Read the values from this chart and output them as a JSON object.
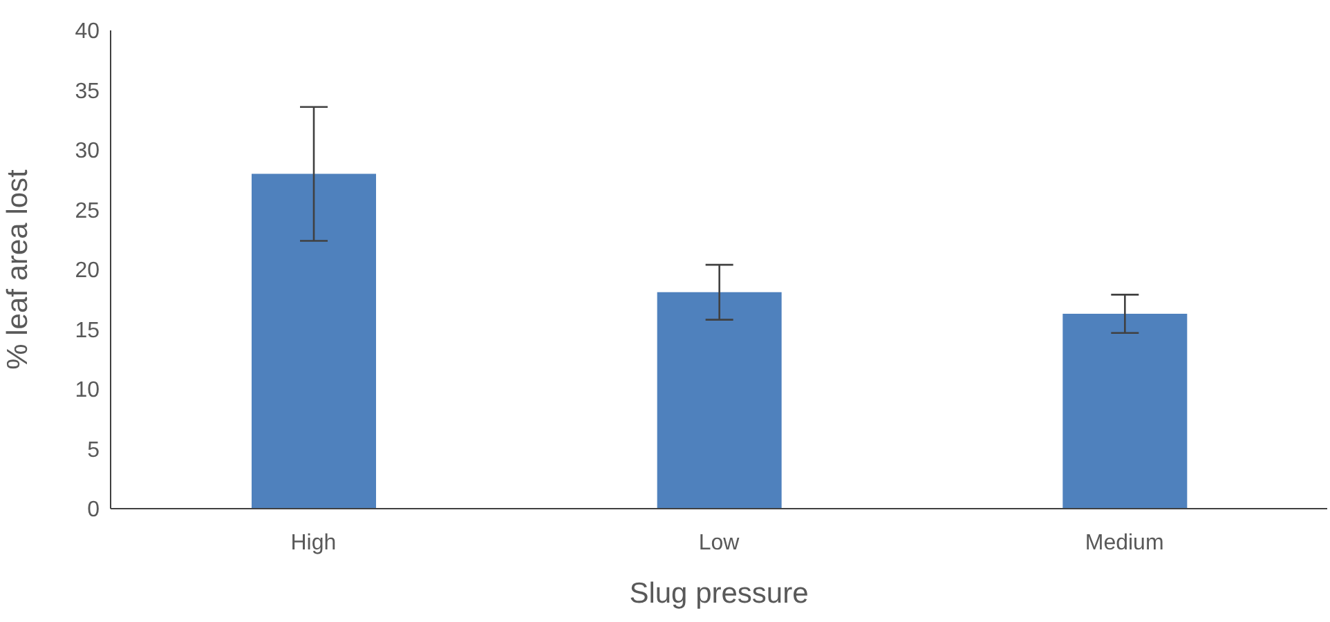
{
  "chart_data": {
    "type": "bar",
    "xlabel": "Slug pressure",
    "ylabel": "% leaf area lost",
    "categories": [
      "High",
      "Low",
      "Medium"
    ],
    "values": [
      28,
      18.1,
      16.3
    ],
    "errors": [
      5.6,
      2.3,
      1.6
    ],
    "color": "#4f81bd",
    "ylim": [
      0,
      40
    ],
    "yticks": [
      0,
      5,
      10,
      15,
      20,
      25,
      30,
      35,
      40
    ],
    "grid": false,
    "legend": false
  }
}
